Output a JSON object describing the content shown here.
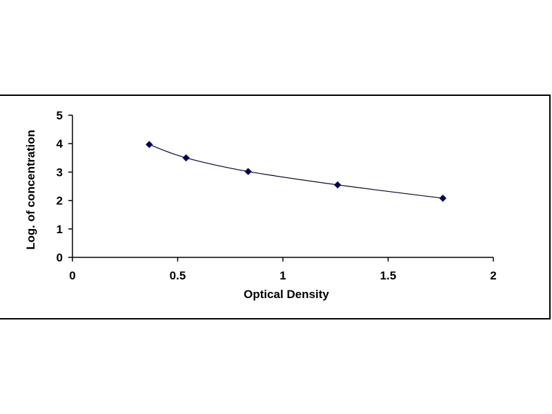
{
  "chart_data": {
    "type": "scatter",
    "title": "",
    "xlabel": "Optical Density",
    "ylabel": "Log. of concentration",
    "xlim": [
      0,
      2
    ],
    "ylim": [
      0,
      5
    ],
    "x_ticks": [
      0,
      0.5,
      1,
      1.5,
      2
    ],
    "x_tick_labels": [
      "0",
      "0.5",
      "1",
      "1.5",
      "2"
    ],
    "y_ticks": [
      0,
      1,
      2,
      3,
      4,
      5
    ],
    "y_tick_labels": [
      "0",
      "1",
      "2",
      "3",
      "4",
      "5"
    ],
    "grid": false,
    "legend": "none",
    "trendline": "smooth curve through points",
    "series": [
      {
        "x": [
          0.365,
          0.54,
          0.835,
          1.26,
          1.76
        ],
        "y": [
          3.97,
          3.5,
          3.02,
          2.55,
          2.08
        ]
      }
    ],
    "colors": {
      "marker": "#000060",
      "line": "#000040",
      "axis": "#000000"
    }
  }
}
